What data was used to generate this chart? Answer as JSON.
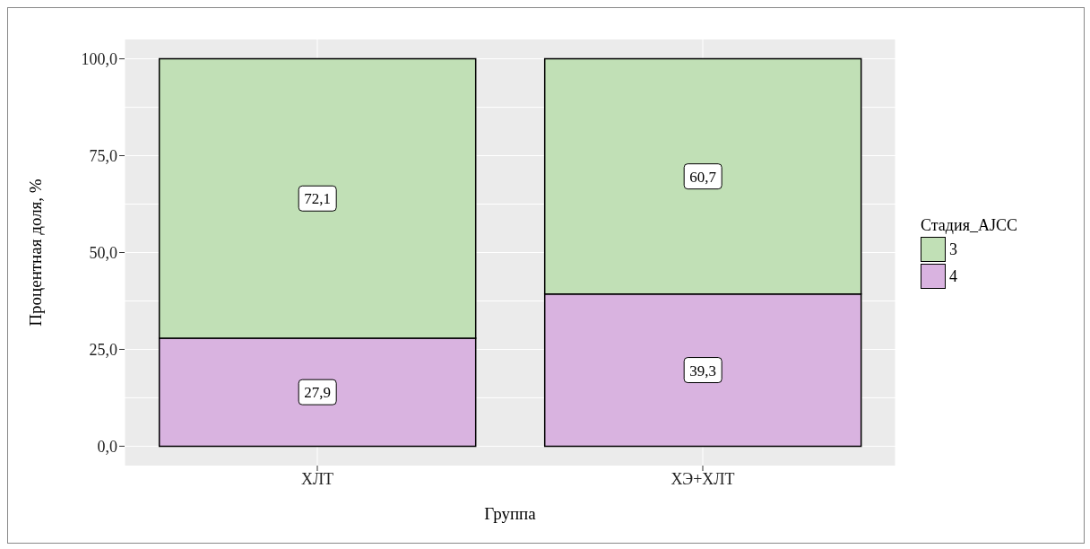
{
  "chart_data": {
    "type": "bar",
    "stacked": true,
    "xlabel": "Группа",
    "ylabel": "Процентная доля, %",
    "legend_title": "Стадия_AJCC",
    "categories": [
      "ХЛТ",
      "ХЭ+ХЛТ"
    ],
    "series": [
      {
        "name": "4",
        "color": "#d9b3e0",
        "values": [
          27.9,
          39.3
        ],
        "value_labels": [
          "27,9",
          "39,3"
        ]
      },
      {
        "name": "3",
        "color": "#c1e0b6",
        "values": [
          72.1,
          60.7
        ],
        "value_labels": [
          "72,1",
          "60,7"
        ]
      }
    ],
    "ylim": [
      -5,
      105
    ],
    "yticks": [
      {
        "value": 0,
        "label": "0,0"
      },
      {
        "value": 25,
        "label": "25,0"
      },
      {
        "value": 50,
        "label": "50,0"
      },
      {
        "value": 75,
        "label": "75,0"
      },
      {
        "value": 100,
        "label": "100,0"
      }
    ],
    "grid": true,
    "legend": "right"
  }
}
